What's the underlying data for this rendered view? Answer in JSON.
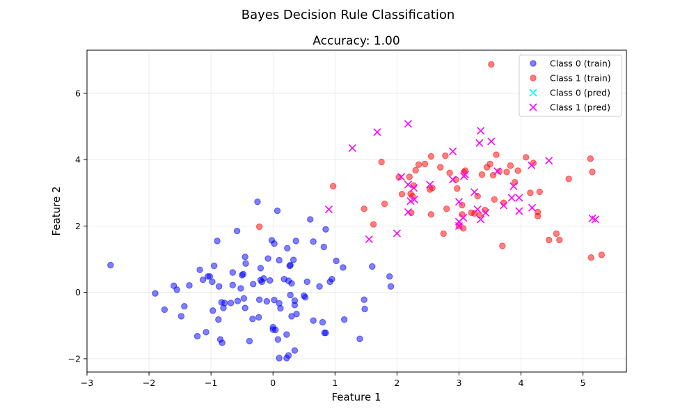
{
  "chart_data": {
    "type": "scatter",
    "suptitle": "Bayes Decision Rule Classification",
    "title": "Accuracy: 1.00",
    "xlabel": "Feature 1",
    "ylabel": "Feature 2",
    "xlim": [
      -3,
      5.7
    ],
    "ylim": [
      -2.4,
      7.3
    ],
    "xticks": [
      -3,
      -2,
      -1,
      0,
      1,
      2,
      3,
      4,
      5
    ],
    "yticks": [
      -2,
      0,
      2,
      4,
      6
    ],
    "xtick_labels": [
      "−3",
      "−2",
      "−1",
      "0",
      "1",
      "2",
      "3",
      "4",
      "5"
    ],
    "ytick_labels": [
      "−2",
      "0",
      "2",
      "4",
      "6"
    ],
    "grid": true,
    "legend_position": "top-right",
    "series": [
      {
        "name": "Class 0 (train)",
        "marker": "circle",
        "color": "#0000ff",
        "points": [
          [
            -2.62,
            0.82
          ],
          [
            -1.9,
            -0.03
          ],
          [
            -1.75,
            -0.52
          ],
          [
            -1.6,
            0.2
          ],
          [
            -1.55,
            0.08
          ],
          [
            -1.48,
            -0.72
          ],
          [
            -1.43,
            -0.42
          ],
          [
            -1.35,
            0.21
          ],
          [
            -1.22,
            -1.32
          ],
          [
            -1.18,
            0.68
          ],
          [
            -1.13,
            0.38
          ],
          [
            -1.08,
            -1.2
          ],
          [
            -1.05,
            0.48
          ],
          [
            -1.02,
            0.48
          ],
          [
            -0.98,
            0.32
          ],
          [
            -0.97,
            -0.55
          ],
          [
            -0.95,
            0.8
          ],
          [
            -0.9,
            1.55
          ],
          [
            -0.88,
            -0.82
          ],
          [
            -0.87,
            0.18
          ],
          [
            -0.85,
            -1.42
          ],
          [
            -0.83,
            -0.3
          ],
          [
            -0.82,
            -1.52
          ],
          [
            -0.8,
            -0.47
          ],
          [
            -0.78,
            -0.32
          ],
          [
            -0.68,
            -0.32
          ],
          [
            -0.65,
            0.22
          ],
          [
            -0.65,
            0.6
          ],
          [
            -0.58,
            1.85
          ],
          [
            -0.57,
            -0.26
          ],
          [
            -0.52,
            0.12
          ],
          [
            -0.5,
            0.52
          ],
          [
            -0.48,
            0.55
          ],
          [
            -0.47,
            -0.18
          ],
          [
            -0.45,
            1.07
          ],
          [
            -0.45,
            -0.47
          ],
          [
            -0.44,
            0.87
          ],
          [
            -0.38,
            -1.47
          ],
          [
            -0.33,
            -0.8
          ],
          [
            -0.32,
            0.25
          ],
          [
            -0.25,
            2.73
          ],
          [
            -0.23,
            -0.75
          ],
          [
            -0.22,
            -0.22
          ],
          [
            -0.2,
            0.73
          ],
          [
            -0.2,
            0.37
          ],
          [
            -0.18,
            0.32
          ],
          [
            -0.15,
            0.42
          ],
          [
            -0.1,
            -0.27
          ],
          [
            -0.08,
            1.02
          ],
          [
            -0.05,
            0.36
          ],
          [
            -0.02,
            1.57
          ],
          [
            0.0,
            -1.12
          ],
          [
            0.0,
            -1.05
          ],
          [
            0.02,
            1.47
          ],
          [
            0.02,
            -0.23
          ],
          [
            0.04,
            -1.13
          ],
          [
            0.07,
            2.46
          ],
          [
            0.08,
            -1.42
          ],
          [
            0.1,
            -1.98
          ],
          [
            0.1,
            -0.33
          ],
          [
            0.1,
            0.97
          ],
          [
            0.12,
            -0.48
          ],
          [
            0.18,
            0.4
          ],
          [
            0.22,
            -1.98
          ],
          [
            0.22,
            -1.27
          ],
          [
            0.23,
            1.33
          ],
          [
            0.25,
            -1.9
          ],
          [
            0.25,
            0.35
          ],
          [
            0.27,
            0.8
          ],
          [
            0.28,
            0.82
          ],
          [
            0.28,
            -0.08
          ],
          [
            0.3,
            -0.72
          ],
          [
            0.3,
            0.27
          ],
          [
            0.33,
            0.98
          ],
          [
            0.35,
            -0.38
          ],
          [
            0.35,
            -0.25
          ],
          [
            0.35,
            -1.75
          ],
          [
            0.37,
            1.55
          ],
          [
            0.38,
            -0.65
          ],
          [
            0.5,
            -0.1
          ],
          [
            0.52,
            -0.15
          ],
          [
            0.55,
            0.32
          ],
          [
            0.6,
            2.2
          ],
          [
            0.65,
            1.53
          ],
          [
            0.65,
            -0.85
          ],
          [
            0.75,
            0.18
          ],
          [
            0.8,
            -0.9
          ],
          [
            0.82,
            1.37
          ],
          [
            0.83,
            -1.22
          ],
          [
            0.85,
            1.9
          ],
          [
            0.85,
            -1.22
          ],
          [
            0.92,
            0.32
          ],
          [
            0.95,
            0.4
          ],
          [
            1.02,
            0.95
          ],
          [
            1.13,
            0.75
          ],
          [
            1.15,
            -0.82
          ],
          [
            1.4,
            -1.4
          ],
          [
            1.47,
            -0.22
          ],
          [
            1.48,
            -0.5
          ],
          [
            1.6,
            0.78
          ],
          [
            1.88,
            0.48
          ],
          [
            1.9,
            0.18
          ]
        ]
      },
      {
        "name": "Class 1 (train)",
        "marker": "circle",
        "color": "#ff0000",
        "points": [
          [
            -0.22,
            1.98
          ],
          [
            0.97,
            3.2
          ],
          [
            1.47,
            2.52
          ],
          [
            1.62,
            2.05
          ],
          [
            1.75,
            3.93
          ],
          [
            1.8,
            2.67
          ],
          [
            2.03,
            3.47
          ],
          [
            2.08,
            2.96
          ],
          [
            2.2,
            3.48
          ],
          [
            2.22,
            2.97
          ],
          [
            2.23,
            2.4
          ],
          [
            2.25,
            2.9
          ],
          [
            2.27,
            3.22
          ],
          [
            2.3,
            3.68
          ],
          [
            2.35,
            3.85
          ],
          [
            2.45,
            3.87
          ],
          [
            2.53,
            3.1
          ],
          [
            2.55,
            2.35
          ],
          [
            2.55,
            4.1
          ],
          [
            2.57,
            3.15
          ],
          [
            2.7,
            3.77
          ],
          [
            2.75,
            1.77
          ],
          [
            2.78,
            4.12
          ],
          [
            2.8,
            2.52
          ],
          [
            2.85,
            3.6
          ],
          [
            2.95,
            3.4
          ],
          [
            2.97,
            3.13
          ],
          [
            3.0,
            2.0
          ],
          [
            3.05,
            2.63
          ],
          [
            3.05,
            2.35
          ],
          [
            3.07,
            1.93
          ],
          [
            3.08,
            3.62
          ],
          [
            3.1,
            3.67
          ],
          [
            3.2,
            2.4
          ],
          [
            3.25,
            2.38
          ],
          [
            3.3,
            2.9
          ],
          [
            3.33,
            2.33
          ],
          [
            3.37,
            3.55
          ],
          [
            3.42,
            2.48
          ],
          [
            3.45,
            3.77
          ],
          [
            3.5,
            3.87
          ],
          [
            3.52,
            6.87
          ],
          [
            3.55,
            3.53
          ],
          [
            3.57,
            2.8
          ],
          [
            3.6,
            4.15
          ],
          [
            3.65,
            3.65
          ],
          [
            3.7,
            1.4
          ],
          [
            3.72,
            2.7
          ],
          [
            3.77,
            3.63
          ],
          [
            3.83,
            3.82
          ],
          [
            3.9,
            3.32
          ],
          [
            3.95,
            3.67
          ],
          [
            4.08,
            4.07
          ],
          [
            4.15,
            3.0
          ],
          [
            4.2,
            3.9
          ],
          [
            4.27,
            2.42
          ],
          [
            4.27,
            2.3
          ],
          [
            4.3,
            3.03
          ],
          [
            4.45,
            1.58
          ],
          [
            4.57,
            1.77
          ],
          [
            4.62,
            1.58
          ],
          [
            4.77,
            3.42
          ],
          [
            5.12,
            4.03
          ],
          [
            5.13,
            1.05
          ],
          [
            5.15,
            3.63
          ],
          [
            5.3,
            1.13
          ]
        ]
      },
      {
        "name": "Class 0 (pred)",
        "marker": "x",
        "color": "#00ffff",
        "points": []
      },
      {
        "name": "Class 1 (pred)",
        "marker": "x",
        "color": "#ff00ff",
        "points": [
          [
            0.9,
            2.5
          ],
          [
            1.28,
            4.35
          ],
          [
            1.55,
            1.6
          ],
          [
            1.68,
            4.83
          ],
          [
            2.0,
            1.78
          ],
          [
            2.07,
            3.48
          ],
          [
            2.18,
            2.42
          ],
          [
            2.18,
            3.25
          ],
          [
            2.18,
            5.08
          ],
          [
            2.22,
            2.75
          ],
          [
            2.27,
            3.15
          ],
          [
            2.28,
            2.8
          ],
          [
            2.53,
            3.25
          ],
          [
            2.9,
            3.4
          ],
          [
            2.9,
            4.25
          ],
          [
            3.0,
            2.73
          ],
          [
            3.0,
            2.13
          ],
          [
            3.0,
            2.0
          ],
          [
            3.07,
            2.25
          ],
          [
            3.08,
            3.5
          ],
          [
            3.1,
            3.55
          ],
          [
            3.25,
            3.02
          ],
          [
            3.3,
            2.5
          ],
          [
            3.33,
            4.5
          ],
          [
            3.35,
            4.87
          ],
          [
            3.35,
            2.2
          ],
          [
            3.43,
            2.4
          ],
          [
            3.52,
            4.55
          ],
          [
            3.62,
            3.65
          ],
          [
            3.72,
            2.62
          ],
          [
            3.85,
            2.85
          ],
          [
            3.88,
            3.2
          ],
          [
            3.97,
            2.45
          ],
          [
            3.97,
            2.85
          ],
          [
            4.17,
            3.83
          ],
          [
            4.18,
            2.55
          ],
          [
            4.45,
            3.97
          ],
          [
            5.15,
            2.23
          ],
          [
            5.2,
            2.2
          ]
        ]
      }
    ]
  }
}
